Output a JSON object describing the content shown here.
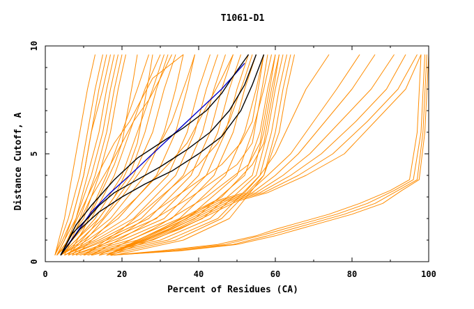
{
  "chart_data": {
    "type": "line",
    "title": "T1061-D1",
    "xlabel": "Percent of Residues (CA)",
    "ylabel": "Distance Cutoff, A",
    "xlim": [
      0,
      100
    ],
    "ylim": [
      0,
      10
    ],
    "x_ticks": [
      "0",
      "20",
      "40",
      "60",
      "80",
      "100"
    ],
    "y_ticks": [
      "0",
      "5",
      "10"
    ],
    "grid": false,
    "legend": "none",
    "colors": {
      "models": "#ff8c00",
      "highlight_blue": "#0000cc",
      "highlight_black": "#000000"
    },
    "series": [
      {
        "group": "models",
        "x": [
          2.5,
          3.5,
          5,
          7,
          9,
          11,
          13
        ],
        "y": [
          0.3,
          1.0,
          2.0,
          4.0,
          6.0,
          8.0,
          9.6
        ]
      },
      {
        "group": "models",
        "x": [
          2.5,
          4,
          6,
          9,
          11,
          13,
          15
        ],
        "y": [
          0.3,
          1.0,
          2.0,
          4.0,
          6.0,
          8.0,
          9.6
        ]
      },
      {
        "group": "models",
        "x": [
          2.5,
          4.5,
          7,
          10,
          12,
          14,
          16
        ],
        "y": [
          0.3,
          1.0,
          2.0,
          4.0,
          6.0,
          8.0,
          9.6
        ]
      },
      {
        "group": "models",
        "x": [
          3,
          5,
          7,
          10,
          12,
          15,
          17
        ],
        "y": [
          0.3,
          1.0,
          2.0,
          4.0,
          6.0,
          8.0,
          9.6
        ]
      },
      {
        "group": "models",
        "x": [
          3,
          5,
          8,
          11,
          14,
          16,
          18
        ],
        "y": [
          0.3,
          1.0,
          2.0,
          4.0,
          6.0,
          8.0,
          9.6
        ]
      },
      {
        "group": "models",
        "x": [
          3,
          6,
          8,
          12,
          15,
          17,
          19
        ],
        "y": [
          0.3,
          1.0,
          2.0,
          4.0,
          6.0,
          8.0,
          9.6
        ]
      },
      {
        "group": "models",
        "x": [
          3,
          6,
          9,
          13,
          16,
          18,
          20
        ],
        "y": [
          0.3,
          1.0,
          2.0,
          4.0,
          6.0,
          8.0,
          9.6
        ]
      },
      {
        "group": "models",
        "x": [
          3,
          6,
          10,
          14,
          17,
          19,
          21
        ],
        "y": [
          0.3,
          1.0,
          2.0,
          4.0,
          6.0,
          8.0,
          9.6
        ]
      },
      {
        "group": "models",
        "x": [
          3,
          7,
          11,
          16,
          20,
          24,
          27
        ],
        "y": [
          0.3,
          1.0,
          2.0,
          4.0,
          6.0,
          8.0,
          9.6
        ]
      },
      {
        "group": "models",
        "x": [
          3,
          7,
          12,
          18,
          22,
          26,
          30
        ],
        "y": [
          0.3,
          1.0,
          2.0,
          4.0,
          6.0,
          8.0,
          9.6
        ]
      },
      {
        "group": "models",
        "x": [
          4,
          8,
          13,
          20,
          24,
          28,
          31
        ],
        "y": [
          0.3,
          1.0,
          2.0,
          4.0,
          6.0,
          8.0,
          9.6
        ]
      },
      {
        "group": "models",
        "x": [
          4,
          8,
          14,
          22,
          26,
          29,
          32
        ],
        "y": [
          0.3,
          1.0,
          2.0,
          4.0,
          6.0,
          8.0,
          9.6
        ]
      },
      {
        "group": "models",
        "x": [
          4,
          9,
          15,
          23,
          28,
          31,
          34
        ],
        "y": [
          0.3,
          1.0,
          2.0,
          4.0,
          6.0,
          8.0,
          9.6
        ]
      },
      {
        "group": "models",
        "x": [
          4,
          10,
          17,
          26,
          31,
          34,
          36
        ],
        "y": [
          0.3,
          1.0,
          2.0,
          4.0,
          6.0,
          8.0,
          9.6
        ]
      },
      {
        "group": "models",
        "x": [
          4,
          11,
          19,
          29,
          34,
          37,
          39
        ],
        "y": [
          0.3,
          1.0,
          2.0,
          4.0,
          6.0,
          8.0,
          9.6
        ]
      },
      {
        "group": "models",
        "x": [
          5,
          12,
          21,
          32,
          37,
          40,
          43
        ],
        "y": [
          0.3,
          1.0,
          2.0,
          4.0,
          6.0,
          8.0,
          9.6
        ]
      },
      {
        "group": "models",
        "x": [
          5,
          13,
          23,
          34,
          39,
          42,
          45
        ],
        "y": [
          0.3,
          1.0,
          2.0,
          4.0,
          6.0,
          8.0,
          9.6
        ]
      },
      {
        "group": "models",
        "x": [
          5,
          14,
          25,
          36,
          41,
          44,
          47
        ],
        "y": [
          0.3,
          1.0,
          2.0,
          4.0,
          6.0,
          8.0,
          9.6
        ]
      },
      {
        "group": "models",
        "x": [
          6,
          15,
          27,
          38,
          43,
          46,
          49
        ],
        "y": [
          0.3,
          1.0,
          2.0,
          4.0,
          6.0,
          8.0,
          9.6
        ]
      },
      {
        "group": "models",
        "x": [
          6,
          16,
          29,
          40,
          45,
          48,
          51
        ],
        "y": [
          0.3,
          1.0,
          2.0,
          4.0,
          6.0,
          8.0,
          9.6
        ]
      },
      {
        "group": "models",
        "x": [
          7,
          18,
          31,
          42,
          47,
          50,
          53
        ],
        "y": [
          0.3,
          1.0,
          2.0,
          4.0,
          6.0,
          8.0,
          9.6
        ]
      },
      {
        "group": "models",
        "x": [
          7,
          20,
          33,
          44,
          49,
          52,
          55
        ],
        "y": [
          0.3,
          1.0,
          2.0,
          4.0,
          6.0,
          8.0,
          9.6
        ]
      },
      {
        "group": "models",
        "x": [
          8,
          22,
          35,
          47,
          52,
          55,
          57
        ],
        "y": [
          0.3,
          1.0,
          2.0,
          4.0,
          6.0,
          8.0,
          9.6
        ]
      },
      {
        "group": "models",
        "x": [
          9,
          24,
          37,
          50,
          54,
          57,
          59
        ],
        "y": [
          0.3,
          1.0,
          2.0,
          4.0,
          6.0,
          8.0,
          9.6
        ]
      },
      {
        "group": "models",
        "x": [
          10,
          26,
          39,
          52,
          56,
          58,
          60
        ],
        "y": [
          0.3,
          1.0,
          2.0,
          4.0,
          6.0,
          8.0,
          9.6
        ]
      },
      {
        "group": "models",
        "x": [
          11,
          28,
          41,
          54,
          57,
          59,
          61
        ],
        "y": [
          0.3,
          1.0,
          2.0,
          4.0,
          6.0,
          8.0,
          9.6
        ]
      },
      {
        "group": "models",
        "x": [
          12,
          30,
          43,
          55,
          58,
          60,
          62
        ],
        "y": [
          0.3,
          1.0,
          2.0,
          4.0,
          6.0,
          8.0,
          9.6
        ]
      },
      {
        "group": "models",
        "x": [
          14,
          32,
          45,
          56,
          59,
          61,
          63
        ],
        "y": [
          0.3,
          1.0,
          2.0,
          4.0,
          6.0,
          8.0,
          9.6
        ]
      },
      {
        "group": "models",
        "x": [
          16,
          34,
          46,
          57,
          60,
          62,
          64
        ],
        "y": [
          0.3,
          1.0,
          2.0,
          4.0,
          6.0,
          8.0,
          9.6
        ]
      },
      {
        "group": "models",
        "x": [
          18,
          36,
          48,
          57,
          61,
          63,
          65
        ],
        "y": [
          0.3,
          1.0,
          2.0,
          4.0,
          6.0,
          8.0,
          9.6
        ]
      },
      {
        "group": "models",
        "x": [
          5,
          8,
          12,
          17,
          20,
          23,
          27,
          30,
          33
        ],
        "y": [
          0.3,
          1.5,
          3.0,
          4.5,
          5.5,
          6.5,
          7.5,
          8.5,
          9.6
        ]
      },
      {
        "group": "models",
        "x": [
          4,
          7,
          11,
          15,
          18,
          22,
          25,
          28,
          36
        ],
        "y": [
          0.3,
          1.5,
          3.0,
          4.5,
          5.5,
          6.5,
          7.5,
          8.5,
          9.6
        ]
      },
      {
        "group": "models",
        "x": [
          6,
          10,
          14,
          18,
          20,
          21,
          22,
          23,
          24
        ],
        "y": [
          0.3,
          1.5,
          3.0,
          4.5,
          5.5,
          6.5,
          7.5,
          8.5,
          9.6
        ]
      },
      {
        "group": "models",
        "x": [
          6,
          12,
          18,
          22,
          24,
          25,
          26,
          27,
          28
        ],
        "y": [
          0.3,
          1.5,
          3.0,
          4.5,
          5.5,
          6.5,
          7.5,
          8.5,
          9.6
        ]
      },
      {
        "group": "models",
        "x": [
          7,
          13,
          20,
          26,
          30,
          33,
          35,
          37,
          39
        ],
        "y": [
          0.3,
          1.5,
          3.0,
          4.5,
          5.5,
          6.5,
          7.5,
          8.5,
          9.6
        ]
      },
      {
        "group": "models",
        "x": [
          8,
          15,
          24,
          32,
          37,
          40,
          43,
          46,
          49
        ],
        "y": [
          0.3,
          1.5,
          3.0,
          4.5,
          5.5,
          6.5,
          7.5,
          8.5,
          9.6
        ]
      },
      {
        "group": "models",
        "x": [
          10,
          20,
          30,
          40,
          45,
          48,
          50,
          52,
          54
        ],
        "y": [
          0.3,
          1.5,
          3.0,
          4.5,
          5.5,
          6.5,
          7.5,
          8.5,
          9.6
        ]
      },
      {
        "group": "models",
        "x": [
          10,
          22,
          34,
          46,
          51,
          54,
          55,
          56,
          57
        ],
        "y": [
          0.3,
          1.5,
          3.0,
          4.5,
          5.5,
          6.5,
          7.5,
          8.5,
          9.6
        ]
      },
      {
        "group": "models",
        "x": [
          12,
          24,
          38,
          50,
          54,
          55,
          56,
          57,
          58
        ],
        "y": [
          0.3,
          1.5,
          3.0,
          4.5,
          5.5,
          6.5,
          7.5,
          8.5,
          9.6
        ]
      },
      {
        "group": "models",
        "x": [
          14,
          28,
          42,
          53,
          56,
          57,
          58,
          59,
          60
        ],
        "y": [
          0.3,
          1.5,
          3.0,
          4.5,
          5.5,
          6.5,
          7.5,
          8.5,
          9.6
        ]
      },
      {
        "group": "models",
        "x": [
          16,
          32,
          46,
          54,
          57,
          58,
          59,
          60,
          61
        ],
        "y": [
          0.3,
          1.5,
          3.0,
          4.5,
          5.5,
          6.5,
          7.5,
          8.5,
          9.6
        ]
      },
      {
        "group": "models",
        "x": [
          16,
          30,
          44,
          52,
          56,
          60,
          64,
          68,
          74
        ],
        "y": [
          0.3,
          1.5,
          2.8,
          3.2,
          4.0,
          5.0,
          6.5,
          8.0,
          9.6
        ]
      },
      {
        "group": "models",
        "x": [
          16,
          30,
          45,
          53,
          58,
          64,
          70,
          76,
          82
        ],
        "y": [
          0.3,
          1.5,
          2.8,
          3.2,
          4.0,
          5.0,
          6.5,
          8.0,
          9.6
        ]
      },
      {
        "group": "models",
        "x": [
          16,
          31,
          46,
          54,
          60,
          66,
          73,
          80,
          86
        ],
        "y": [
          0.3,
          1.5,
          2.8,
          3.2,
          4.0,
          5.0,
          6.5,
          8.0,
          9.6
        ]
      },
      {
        "group": "models",
        "x": [
          16,
          32,
          47,
          55,
          62,
          69,
          77,
          85,
          91
        ],
        "y": [
          0.3,
          1.5,
          2.8,
          3.2,
          4.0,
          5.0,
          6.5,
          8.0,
          9.6
        ]
      },
      {
        "group": "models",
        "x": [
          16,
          33,
          48,
          56,
          64,
          72,
          81,
          89,
          94
        ],
        "y": [
          0.3,
          1.5,
          2.8,
          3.2,
          4.0,
          5.0,
          6.5,
          8.0,
          9.6
        ]
      },
      {
        "group": "models",
        "x": [
          16,
          34,
          49,
          57,
          66,
          75,
          84,
          92,
          97
        ],
        "y": [
          0.3,
          1.5,
          2.8,
          3.2,
          4.0,
          5.0,
          6.5,
          8.0,
          9.6
        ]
      },
      {
        "group": "models",
        "x": [
          17,
          35,
          50,
          58,
          68,
          78,
          86,
          94,
          98
        ],
        "y": [
          0.3,
          1.5,
          2.8,
          3.2,
          4.0,
          5.0,
          6.5,
          8.0,
          9.6
        ]
      },
      {
        "group": "models",
        "x": [
          17,
          30,
          45,
          55,
          60,
          66,
          74,
          82,
          90,
          95,
          97,
          98
        ],
        "y": [
          0.3,
          0.5,
          0.8,
          1.2,
          1.5,
          1.8,
          2.2,
          2.7,
          3.3,
          3.8,
          6.0,
          9.6
        ]
      },
      {
        "group": "models",
        "x": [
          17,
          32,
          47,
          56,
          62,
          68,
          76,
          84,
          91,
          96,
          98,
          99
        ],
        "y": [
          0.3,
          0.5,
          0.8,
          1.2,
          1.5,
          1.8,
          2.2,
          2.7,
          3.3,
          3.8,
          6.0,
          9.6
        ]
      },
      {
        "group": "models",
        "x": [
          17,
          34,
          49,
          58,
          64,
          70,
          78,
          86,
          92,
          97,
          98.5,
          99.5
        ],
        "y": [
          0.3,
          0.5,
          0.8,
          1.2,
          1.5,
          1.8,
          2.2,
          2.7,
          3.3,
          3.8,
          6.0,
          9.6
        ]
      },
      {
        "group": "models",
        "x": [
          17,
          35,
          50,
          60,
          66,
          72,
          80,
          88,
          93,
          97.5,
          99,
          100
        ],
        "y": [
          0.3,
          0.5,
          0.8,
          1.2,
          1.5,
          1.8,
          2.2,
          2.7,
          3.3,
          3.8,
          6.0,
          9.6
        ]
      },
      {
        "group": "highlight_blue",
        "x": [
          4,
          8,
          12,
          17,
          22,
          28,
          34,
          40,
          46,
          52
        ],
        "y": [
          0.3,
          1.3,
          2.3,
          3.2,
          4.0,
          5.0,
          6.0,
          7.0,
          8.0,
          9.2
        ]
      },
      {
        "group": "highlight_black",
        "x": [
          4,
          8,
          12,
          18,
          24,
          30,
          36,
          42,
          46,
          49,
          53
        ],
        "y": [
          0.3,
          1.7,
          2.6,
          3.8,
          4.8,
          5.5,
          6.2,
          7.0,
          7.8,
          8.6,
          9.6
        ]
      },
      {
        "group": "highlight_black",
        "x": [
          4,
          7,
          11,
          14,
          18,
          24,
          30,
          37,
          43,
          48,
          52,
          55
        ],
        "y": [
          0.3,
          1.3,
          2.0,
          2.6,
          3.2,
          3.8,
          4.4,
          5.2,
          6.0,
          7.0,
          8.2,
          9.6
        ]
      },
      {
        "group": "highlight_black",
        "x": [
          4,
          9,
          14,
          20,
          26,
          33,
          40,
          46,
          51,
          54,
          57
        ],
        "y": [
          0.3,
          1.5,
          2.3,
          3.0,
          3.6,
          4.2,
          5.0,
          5.8,
          7.0,
          8.2,
          9.6
        ]
      }
    ]
  }
}
